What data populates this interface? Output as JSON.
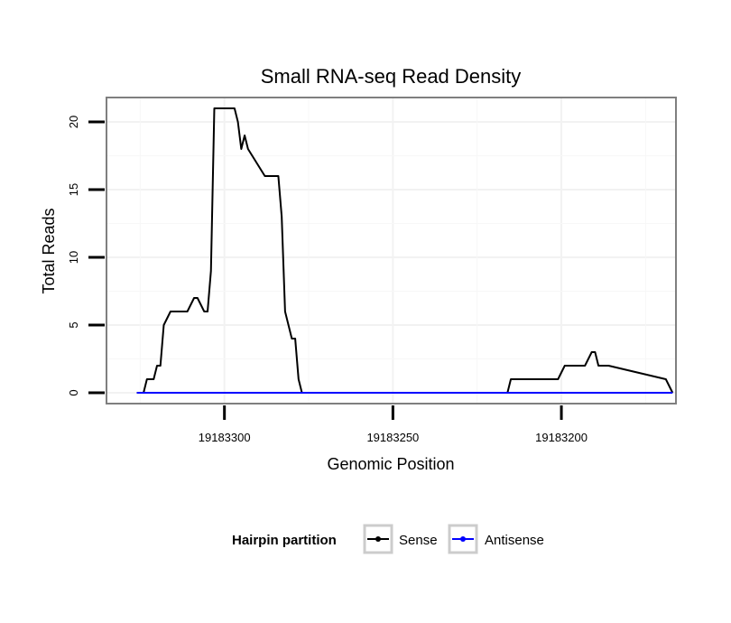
{
  "chart_data": {
    "type": "line",
    "title": "Small RNA-seq Read Density",
    "xlabel": "Genomic Position",
    "ylabel": "Total Reads",
    "x_reversed": true,
    "xlim": [
      19183335,
      19183166
    ],
    "ylim": [
      -0.8,
      21.8
    ],
    "x_ticks": [
      19183300,
      19183250,
      19183200
    ],
    "x_tick_labels": [
      "19183300",
      "19183250",
      "19183200"
    ],
    "y_ticks": [
      0,
      5,
      10,
      15,
      20
    ],
    "y_tick_labels": [
      "0",
      "5",
      "10",
      "15",
      "20"
    ],
    "grid": true,
    "legend": {
      "title": "Hairpin partition",
      "position": "bottom"
    },
    "series": [
      {
        "name": "Sense",
        "color": "#000000",
        "x": [
          19183326,
          19183324,
          19183323,
          19183321,
          19183320,
          19183319,
          19183318,
          19183316,
          19183314,
          19183312,
          19183311,
          19183309,
          19183308,
          19183306,
          19183305,
          19183304,
          19183303,
          19183297,
          19183296,
          19183295,
          19183294,
          19183293,
          19183288,
          19183284,
          19183283,
          19183282,
          19183280,
          19183279,
          19183278,
          19183277,
          19183216,
          19183215,
          19183201,
          19183199,
          19183193,
          19183191,
          19183190,
          19183189,
          19183187,
          19183186,
          19183169,
          19183167
        ],
        "values": [
          0,
          0,
          1,
          1,
          2,
          2,
          5,
          6,
          6,
          6,
          6,
          7,
          7,
          6,
          6,
          9,
          21,
          21,
          20,
          18,
          19,
          18,
          16,
          16,
          13,
          6,
          4,
          4,
          1,
          0,
          0,
          1,
          1,
          2,
          2,
          3,
          3,
          2,
          2,
          2,
          1,
          0
        ]
      },
      {
        "name": "Antisense",
        "color": "#0000ff",
        "x": [
          19183326,
          19183167
        ],
        "values": [
          0,
          0
        ]
      }
    ]
  }
}
